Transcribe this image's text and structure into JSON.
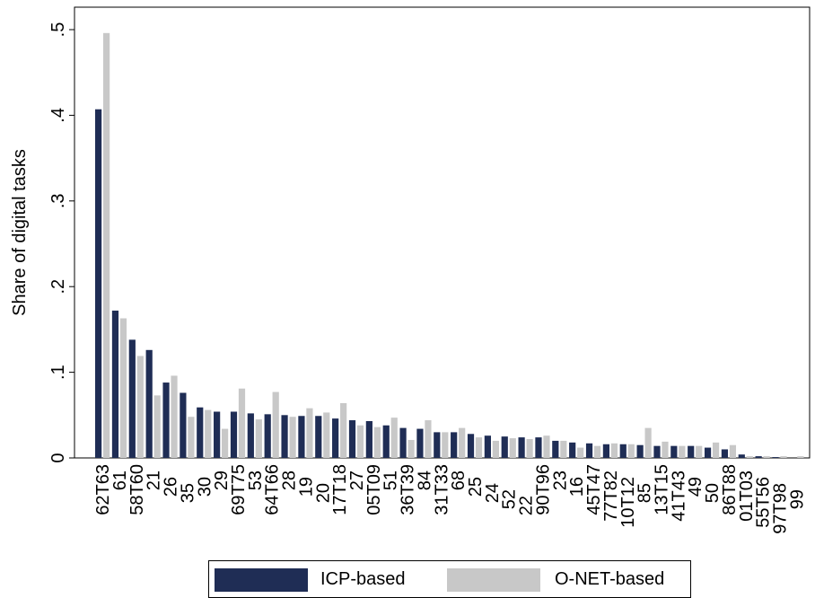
{
  "chart_data": {
    "type": "bar",
    "ylabel": "Share of digital tasks",
    "xlabel": "",
    "ylim": [
      0,
      0.5
    ],
    "yticks": [
      0,
      0.1,
      0.2,
      0.3,
      0.4,
      0.5
    ],
    "ytick_labels": [
      "0",
      ".1",
      ".2",
      ".3",
      ".4",
      ".5"
    ],
    "grid": false,
    "legend_position": "bottom",
    "categories": [
      "62T63",
      "61",
      "58T60",
      "21",
      "26",
      "35",
      "30",
      "29",
      "69T75",
      "53",
      "64T66",
      "28",
      "19",
      "20",
      "17T18",
      "27",
      "05T09",
      "51",
      "36T39",
      "84",
      "31T33",
      "68",
      "25",
      "24",
      "52",
      "22",
      "90T96",
      "23",
      "16",
      "45T47",
      "77T82",
      "10T12",
      "85",
      "13T15",
      "41T43",
      "49",
      "50",
      "86T88",
      "01T03",
      "55T56",
      "97T98",
      "99"
    ],
    "series": [
      {
        "name": "ICP-based",
        "color": "#1f2d55",
        "values": [
          0.407,
          0.172,
          0.138,
          0.126,
          0.088,
          0.076,
          0.059,
          0.054,
          0.054,
          0.052,
          0.051,
          0.05,
          0.049,
          0.049,
          0.046,
          0.044,
          0.043,
          0.038,
          0.035,
          0.034,
          0.03,
          0.03,
          0.028,
          0.026,
          0.025,
          0.024,
          0.024,
          0.02,
          0.018,
          0.017,
          0.016,
          0.016,
          0.015,
          0.014,
          0.014,
          0.014,
          0.012,
          0.01,
          0.004,
          0.002,
          0.001,
          0.0
        ]
      },
      {
        "name": "O-NET-based",
        "color": "#c8c8c8",
        "values": [
          0.496,
          0.163,
          0.119,
          0.073,
          0.096,
          0.048,
          0.056,
          0.034,
          0.081,
          0.045,
          0.077,
          0.048,
          0.058,
          0.053,
          0.064,
          0.038,
          0.036,
          0.047,
          0.021,
          0.044,
          0.03,
          0.035,
          0.024,
          0.02,
          0.023,
          0.022,
          0.026,
          0.02,
          0.012,
          0.014,
          0.017,
          0.016,
          0.035,
          0.019,
          0.014,
          0.014,
          0.018,
          0.015,
          0.002,
          0.002,
          0.002,
          0.002
        ]
      }
    ],
    "visible_tick_labels": [
      {
        "index": 0,
        "row": 0
      },
      {
        "index": 1,
        "row": 1
      },
      {
        "index": 2,
        "row": 0
      },
      {
        "index": 3,
        "row": 1
      },
      {
        "index": 4,
        "row": 2
      },
      {
        "index": 5,
        "row": 3
      },
      {
        "index": 7,
        "row": 1
      },
      {
        "index": 6,
        "row": 2
      },
      {
        "index": 8,
        "row": 0
      },
      {
        "index": 9,
        "row": 1
      },
      {
        "index": 10,
        "row": 0
      },
      {
        "index": 11,
        "row": 1
      },
      {
        "index": 12,
        "row": 2
      },
      {
        "index": 13,
        "row": 3
      },
      {
        "index": 14,
        "row": 0
      },
      {
        "index": 15,
        "row": 1
      },
      {
        "index": 16,
        "row": 0
      },
      {
        "index": 17,
        "row": 1
      },
      {
        "index": 18,
        "row": 0
      },
      {
        "index": 19,
        "row": 1
      },
      {
        "index": 20,
        "row": 0
      },
      {
        "index": 21,
        "row": 1
      },
      {
        "index": 22,
        "row": 2
      },
      {
        "index": 23,
        "row": 3
      },
      {
        "index": 24,
        "row": 4
      },
      {
        "index": 25,
        "row": 5
      },
      {
        "index": 26,
        "row": 0
      },
      {
        "index": 27,
        "row": 1
      },
      {
        "index": 28,
        "row": 2
      },
      {
        "index": 29,
        "row": 0
      },
      {
        "index": 30,
        "row": 1
      },
      {
        "index": 31,
        "row": 2
      },
      {
        "index": 32,
        "row": 3
      },
      {
        "index": 33,
        "row": 0
      },
      {
        "index": 34,
        "row": 1
      },
      {
        "index": 35,
        "row": 2
      },
      {
        "index": 36,
        "row": 3
      },
      {
        "index": 37,
        "row": 0
      },
      {
        "index": 38,
        "row": 1
      },
      {
        "index": 39,
        "row": 2
      },
      {
        "index": 40,
        "row": 3
      },
      {
        "index": 41,
        "row": 4
      }
    ]
  },
  "legend": {
    "items": [
      {
        "label": "ICP-based",
        "color": "#1f2d55"
      },
      {
        "label": "O-NET-based",
        "color": "#c8c8c8"
      }
    ]
  }
}
